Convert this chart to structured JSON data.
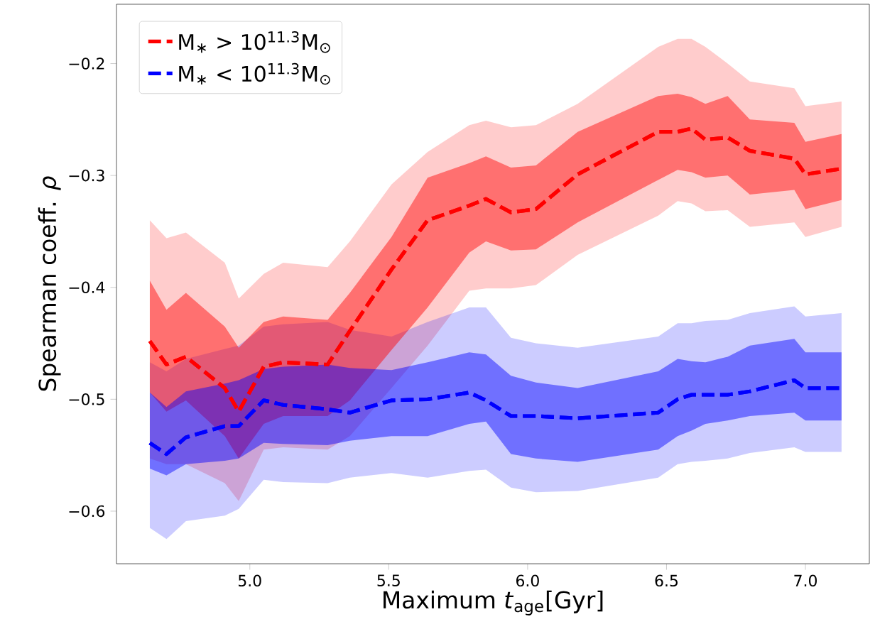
{
  "chart_data": {
    "type": "line",
    "xlabel": "Maximum *t*$_{age}$[Gyr]",
    "ylabel": "Spearman coeff. *ρ*",
    "x": [
      4.64,
      4.7,
      4.77,
      4.91,
      4.96,
      5.05,
      5.12,
      5.28,
      5.36,
      5.51,
      5.64,
      5.79,
      5.85,
      5.94,
      6.03,
      6.18,
      6.47,
      6.54,
      6.59,
      6.64,
      6.72,
      6.8,
      6.96,
      7.0,
      7.13
    ],
    "xlim": [
      4.52,
      7.23
    ],
    "ylim": [
      -0.647,
      -0.147
    ],
    "xticks": [
      {
        "value": 5,
        "label": "5.0"
      },
      {
        "value": 5.5,
        "label": "5.5"
      },
      {
        "value": 6,
        "label": "6.0"
      },
      {
        "value": 6.5,
        "label": "6.5"
      },
      {
        "value": 7,
        "label": "7.0"
      }
    ],
    "yticks": [
      {
        "value": -0.6,
        "label": "−0.6"
      },
      {
        "value": -0.5,
        "label": "−0.5"
      },
      {
        "value": -0.4,
        "label": "−0.4"
      },
      {
        "value": -0.3,
        "label": "−0.3"
      },
      {
        "value": -0.2,
        "label": "−0.2"
      }
    ],
    "legend": "top left",
    "series": [
      {
        "name": "M$_{∗}$ > 10$^{11.3}$M$_{⊙}$",
        "color": "#ff0000",
        "line_style": "dashed",
        "values": [
          -0.448,
          -0.469,
          -0.462,
          -0.49,
          -0.511,
          -0.471,
          -0.467,
          -0.469,
          -0.439,
          -0.384,
          -0.34,
          -0.327,
          -0.321,
          -0.333,
          -0.33,
          -0.299,
          -0.261,
          -0.261,
          -0.258,
          -0.268,
          -0.266,
          -0.278,
          -0.285,
          -0.299,
          -0.294
        ],
        "upper": [
          -0.394,
          -0.42,
          -0.405,
          -0.435,
          -0.454,
          -0.431,
          -0.426,
          -0.429,
          -0.405,
          -0.355,
          -0.302,
          -0.289,
          -0.283,
          -0.293,
          -0.291,
          -0.261,
          -0.229,
          -0.227,
          -0.23,
          -0.236,
          -0.229,
          -0.25,
          -0.253,
          -0.27,
          -0.263
        ],
        "lower": [
          -0.494,
          -0.511,
          -0.501,
          -0.533,
          -0.553,
          -0.522,
          -0.515,
          -0.515,
          -0.501,
          -0.456,
          -0.418,
          -0.369,
          -0.359,
          -0.367,
          -0.366,
          -0.342,
          -0.304,
          -0.295,
          -0.297,
          -0.302,
          -0.3,
          -0.317,
          -0.313,
          -0.33,
          -0.322
        ]
      },
      {
        "name": "M$_{∗}$ < 10$^{11.3}$M$_{⊙}$",
        "color": "#0000ff",
        "line_style": "dashed",
        "values": [
          -0.539,
          -0.549,
          -0.534,
          -0.524,
          -0.524,
          -0.501,
          -0.505,
          -0.509,
          -0.512,
          -0.501,
          -0.5,
          -0.494,
          -0.501,
          -0.515,
          -0.515,
          -0.517,
          -0.512,
          -0.5,
          -0.496,
          -0.496,
          -0.496,
          -0.493,
          -0.483,
          -0.49,
          -0.49
        ],
        "upper": [
          -0.494,
          -0.507,
          -0.493,
          -0.486,
          -0.483,
          -0.473,
          -0.471,
          -0.469,
          -0.472,
          -0.474,
          -0.467,
          -0.458,
          -0.46,
          -0.479,
          -0.485,
          -0.49,
          -0.475,
          -0.464,
          -0.466,
          -0.467,
          -0.462,
          -0.452,
          -0.446,
          -0.458,
          -0.458
        ],
        "lower": [
          -0.562,
          -0.568,
          -0.558,
          -0.555,
          -0.553,
          -0.539,
          -0.54,
          -0.541,
          -0.537,
          -0.533,
          -0.533,
          -0.522,
          -0.52,
          -0.549,
          -0.553,
          -0.556,
          -0.545,
          -0.533,
          -0.528,
          -0.522,
          -0.519,
          -0.515,
          -0.512,
          -0.519,
          -0.519
        ]
      },
      {
        "color": "#ff0000",
        "line_style": "dashed",
        "values": [
          -0.448,
          -0.469,
          -0.462,
          -0.49,
          -0.511,
          -0.471,
          -0.467,
          -0.469,
          -0.439,
          -0.384,
          -0.34,
          -0.327,
          -0.321,
          -0.333,
          -0.33,
          -0.299,
          -0.261,
          -0.261,
          -0.258,
          -0.268,
          -0.266,
          -0.278,
          -0.285,
          -0.299,
          -0.294
        ],
        "upper": [
          -0.34,
          -0.356,
          -0.351,
          -0.378,
          -0.41,
          -0.388,
          -0.378,
          -0.382,
          -0.359,
          -0.308,
          -0.279,
          -0.255,
          -0.251,
          -0.257,
          -0.255,
          -0.236,
          -0.185,
          -0.178,
          -0.178,
          -0.185,
          -0.2,
          -0.216,
          -0.222,
          -0.238,
          -0.234
        ],
        "lower": [
          -0.553,
          -0.558,
          -0.558,
          -0.575,
          -0.591,
          -0.545,
          -0.543,
          -0.545,
          -0.533,
          -0.49,
          -0.452,
          -0.403,
          -0.401,
          -0.401,
          -0.398,
          -0.371,
          -0.336,
          -0.323,
          -0.325,
          -0.332,
          -0.331,
          -0.346,
          -0.342,
          -0.355,
          -0.346
        ]
      },
      {
        "color": "#0000ff",
        "line_style": "dashed",
        "values": [
          -0.539,
          -0.549,
          -0.534,
          -0.524,
          -0.524,
          -0.501,
          -0.505,
          -0.509,
          -0.512,
          -0.501,
          -0.5,
          -0.494,
          -0.501,
          -0.515,
          -0.515,
          -0.517,
          -0.512,
          -0.5,
          -0.496,
          -0.496,
          -0.496,
          -0.493,
          -0.483,
          -0.49,
          -0.49
        ],
        "upper": [
          -0.467,
          -0.475,
          -0.464,
          -0.455,
          -0.452,
          -0.435,
          -0.433,
          -0.431,
          -0.438,
          -0.444,
          -0.431,
          -0.418,
          -0.418,
          -0.445,
          -0.45,
          -0.454,
          -0.444,
          -0.432,
          -0.432,
          -0.43,
          -0.429,
          -0.423,
          -0.417,
          -0.426,
          -0.423
        ],
        "lower": [
          -0.615,
          -0.625,
          -0.609,
          -0.604,
          -0.598,
          -0.572,
          -0.574,
          -0.575,
          -0.57,
          -0.566,
          -0.57,
          -0.564,
          -0.563,
          -0.579,
          -0.583,
          -0.582,
          -0.57,
          -0.558,
          -0.556,
          -0.555,
          -0.553,
          -0.548,
          -0.543,
          -0.547,
          -0.547
        ]
      }
    ]
  }
}
